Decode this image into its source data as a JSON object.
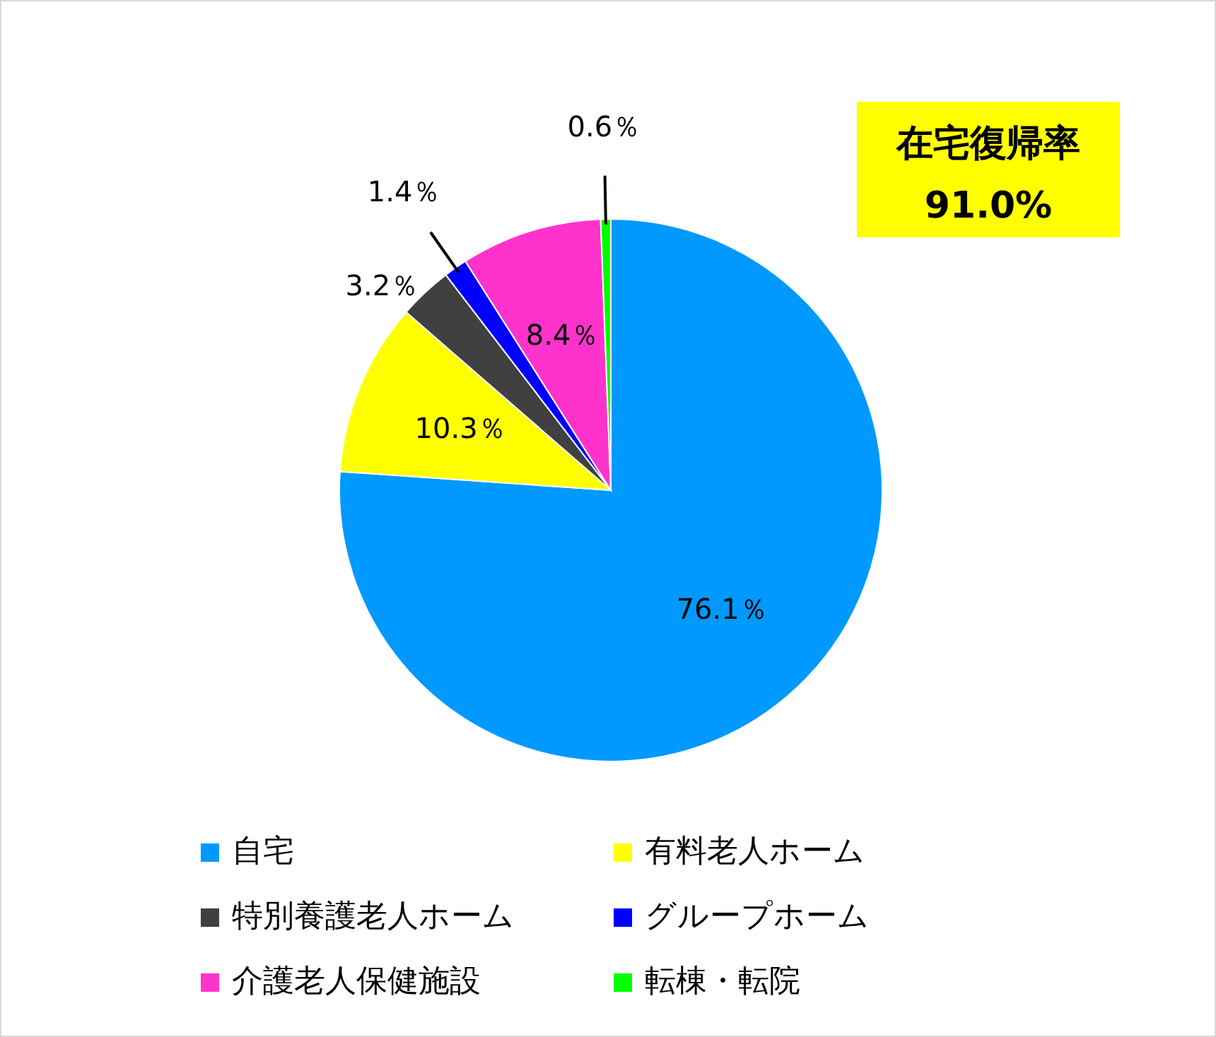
{
  "chart_data": {
    "type": "pie",
    "categories": [
      "自宅",
      "有料老人ホーム",
      "特別養護老人ホーム",
      "グループホーム",
      "介護老人保健施設",
      "転棟・転院"
    ],
    "values": [
      76.1,
      10.3,
      3.2,
      1.4,
      8.4,
      0.6
    ],
    "colors": [
      "#0099ff",
      "#ffff00",
      "#404040",
      "#0000ff",
      "#ff33cc",
      "#00ff00"
    ],
    "value_labels": [
      "76.1％",
      "10.3％",
      "3.2％",
      "1.4％",
      "8.4％",
      "0.6％"
    ],
    "annotations": [
      "在宅復帰率",
      "91.0%"
    ],
    "legend": "bottom"
  }
}
